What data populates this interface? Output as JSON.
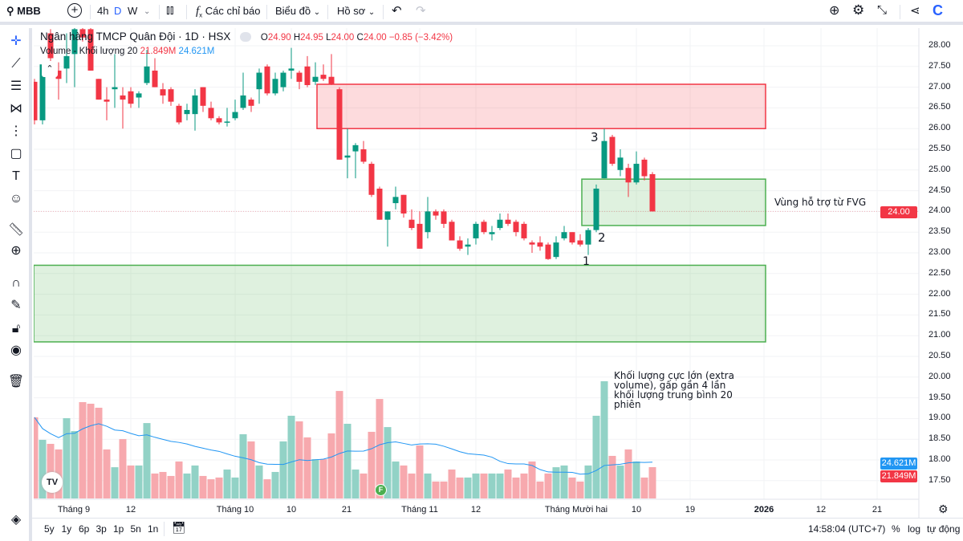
{
  "topbar": {
    "symbol": "MBB",
    "intervals": [
      "4h",
      "D",
      "W"
    ],
    "active_interval": "D",
    "indicators": "Các chỉ báo",
    "chart_menu": "Biểu đồ",
    "profile_menu": "Hồ sơ",
    "logo": "C"
  },
  "legend": {
    "title": "Ngân hàng TMCP Quân Đội · 1D · HSX",
    "o_label": "O",
    "o": "24.90",
    "h_label": "H",
    "h": "24.95",
    "l_label": "L",
    "l": "24.00",
    "c_label": "C",
    "c": "24.00",
    "change": "−0.85 (−3.42%)",
    "volume_label": "Volume - Khối lượng 20",
    "vol": "21.849M",
    "vol_ma": "24.621M"
  },
  "colors": {
    "up": "#089981",
    "down": "#f23645",
    "up_vol": "#92d2c6",
    "down_vol": "#f7a9ae",
    "ma": "#2196f3",
    "accent": "#2962ff",
    "resistance_zone": "#f23645",
    "support_zone": "#4caf50"
  },
  "price_axis": [
    "28.00",
    "27.50",
    "27.00",
    "26.50",
    "26.00",
    "25.50",
    "25.00",
    "24.50",
    "24.00",
    "23.50",
    "23.00",
    "22.50",
    "22.00",
    "21.50",
    "21.00",
    "20.50",
    "20.00",
    "19.50",
    "19.00",
    "18.50",
    "18.00",
    "17.50"
  ],
  "price_tags": {
    "last": "24.00",
    "vol_ma": "24.621M",
    "vol": "21.849M"
  },
  "time_axis": [
    {
      "t": "Tháng 9",
      "x": 92
    },
    {
      "t": "12",
      "x": 163
    },
    {
      "t": "Tháng 10",
      "x": 293
    },
    {
      "t": "10",
      "x": 363
    },
    {
      "t": "21",
      "x": 432
    },
    {
      "t": "Tháng 11",
      "x": 523
    },
    {
      "t": "12",
      "x": 593
    },
    {
      "t": "Tháng Mười hai",
      "x": 718
    },
    {
      "t": "10",
      "x": 793
    },
    {
      "t": "19",
      "x": 860
    },
    {
      "t": "2026",
      "x": 952,
      "bold": true
    },
    {
      "t": "12",
      "x": 1023
    },
    {
      "t": "21",
      "x": 1093
    }
  ],
  "annotations": {
    "p1": "1",
    "p2": "2",
    "p3": "3",
    "fvg": "Vùng hỗ trợ từ FVG",
    "volume_note": "Khối lượng cực lớn (extra volume), gấp gần 4 lần khối lượng trung bình 20 phiên",
    "event": "F"
  },
  "bottombar": {
    "ranges": [
      "5y",
      "1y",
      "6p",
      "3p",
      "1p",
      "5n",
      "1n"
    ],
    "time": "14:58:04 (UTC+7)",
    "percent": "%",
    "log": "log",
    "auto": "tự động"
  },
  "chart_data": {
    "type": "candlestick",
    "price_range": [
      17.25,
      28.4
    ],
    "zones": [
      {
        "kind": "resistance",
        "top": 27.07,
        "bottom": 26.0,
        "from_index": 36
      },
      {
        "kind": "support",
        "top": 24.78,
        "bottom": 23.66,
        "from_index": 69
      },
      {
        "kind": "support",
        "top": 22.7,
        "bottom": 20.85,
        "from_index": 0
      }
    ],
    "last_price_line": 24.0,
    "ohlc": [
      [
        27.13,
        27.2,
        26.1,
        26.2
      ],
      [
        26.2,
        27.6,
        26.1,
        27.55
      ],
      [
        28.3,
        28.4,
        27.6,
        27.7
      ],
      [
        27.4,
        27.6,
        26.7,
        27.2
      ],
      [
        27.45,
        28.3,
        27.1,
        27.75
      ],
      [
        27.8,
        28.5,
        27.0,
        28.4
      ],
      [
        28.4,
        28.5,
        28.1,
        28.2
      ],
      [
        28.4,
        28.5,
        27.4,
        27.4
      ],
      [
        27.2,
        27.2,
        26.7,
        26.7
      ],
      [
        26.7,
        27.0,
        26.2,
        26.65
      ],
      [
        26.95,
        27.8,
        26.5,
        27.0
      ],
      [
        26.8,
        27.0,
        26.0,
        26.7
      ],
      [
        26.9,
        27.0,
        26.5,
        26.6
      ],
      [
        26.75,
        26.9,
        26.5,
        26.85
      ],
      [
        27.1,
        27.9,
        27.05,
        27.5
      ],
      [
        27.4,
        27.7,
        27.0,
        27.0
      ],
      [
        26.95,
        27.1,
        26.6,
        26.8
      ],
      [
        26.95,
        27.0,
        26.55,
        26.65
      ],
      [
        26.55,
        26.6,
        26.1,
        26.15
      ],
      [
        26.35,
        26.6,
        26.2,
        26.45
      ],
      [
        26.35,
        26.95,
        25.95,
        26.8
      ],
      [
        27.0,
        27.0,
        26.4,
        26.55
      ],
      [
        26.5,
        26.65,
        26.2,
        26.25
      ],
      [
        26.25,
        26.3,
        26.1,
        26.15
      ],
      [
        26.15,
        26.5,
        26.05,
        26.17
      ],
      [
        26.25,
        26.7,
        26.2,
        26.4
      ],
      [
        26.5,
        27.35,
        26.45,
        26.8
      ],
      [
        26.7,
        26.75,
        26.4,
        26.55
      ],
      [
        26.95,
        27.45,
        26.6,
        27.35
      ],
      [
        27.5,
        27.55,
        26.8,
        26.85
      ],
      [
        26.85,
        27.35,
        26.8,
        27.2
      ],
      [
        27.0,
        27.4,
        26.9,
        27.35
      ],
      [
        27.4,
        27.95,
        27.2,
        27.45
      ],
      [
        27.35,
        27.4,
        26.95,
        27.13
      ],
      [
        27.5,
        27.75,
        27.0,
        27.05
      ],
      [
        27.13,
        27.6,
        27.05,
        27.25
      ],
      [
        27.3,
        27.55,
        27.15,
        27.2
      ],
      [
        27.25,
        27.8,
        27.05,
        27.08
      ],
      [
        26.95,
        27.0,
        25.25,
        25.25
      ],
      [
        25.3,
        26.0,
        24.8,
        25.35
      ],
      [
        25.45,
        25.65,
        24.8,
        25.6
      ],
      [
        25.5,
        25.7,
        25.15,
        25.2
      ],
      [
        25.15,
        25.2,
        24.35,
        24.4
      ],
      [
        24.55,
        24.6,
        23.8,
        23.8
      ],
      [
        23.8,
        24.0,
        23.15,
        24.0
      ],
      [
        24.2,
        24.6,
        24.05,
        24.35
      ],
      [
        24.4,
        24.4,
        23.85,
        23.95
      ],
      [
        23.8,
        24.05,
        23.55,
        23.6
      ],
      [
        23.7,
        24.0,
        23.1,
        23.1
      ],
      [
        23.5,
        24.35,
        23.35,
        24.0
      ],
      [
        24.0,
        24.05,
        23.8,
        23.9
      ],
      [
        24.0,
        24.05,
        23.6,
        23.7
      ],
      [
        23.75,
        23.8,
        23.3,
        23.3
      ],
      [
        23.3,
        23.4,
        23.05,
        23.1
      ],
      [
        23.15,
        23.35,
        22.95,
        23.2
      ],
      [
        23.35,
        23.75,
        23.2,
        23.7
      ],
      [
        23.75,
        23.8,
        23.45,
        23.5
      ],
      [
        23.45,
        23.65,
        23.3,
        23.5
      ],
      [
        23.6,
        23.95,
        23.55,
        23.8
      ],
      [
        23.8,
        23.95,
        23.65,
        23.7
      ],
      [
        23.75,
        23.8,
        23.4,
        23.5
      ],
      [
        23.7,
        23.75,
        23.3,
        23.35
      ],
      [
        23.25,
        23.3,
        23.0,
        23.2
      ],
      [
        23.25,
        23.4,
        23.05,
        23.15
      ],
      [
        23.2,
        23.25,
        22.83,
        22.85
      ],
      [
        22.9,
        23.4,
        22.85,
        23.25
      ],
      [
        23.35,
        23.65,
        23.3,
        23.5
      ],
      [
        23.5,
        23.5,
        23.2,
        23.25
      ],
      [
        23.3,
        23.45,
        23.15,
        23.2
      ],
      [
        23.2,
        23.6,
        22.95,
        23.55
      ],
      [
        23.55,
        24.65,
        23.5,
        24.55
      ],
      [
        24.8,
        26.0,
        24.8,
        25.7
      ],
      [
        25.8,
        25.85,
        25.1,
        25.15
      ],
      [
        25.0,
        25.5,
        24.85,
        25.3
      ],
      [
        25.05,
        25.15,
        24.35,
        24.7
      ],
      [
        24.7,
        25.45,
        24.65,
        25.15
      ],
      [
        25.25,
        25.3,
        24.75,
        24.85
      ],
      [
        24.9,
        24.95,
        24.0,
        24.0
      ]
    ],
    "volume_m": [
      56.6,
      40.9,
      38.1,
      34.2,
      56,
      47,
      67.2,
      66.1,
      63.3,
      34.2,
      21.8,
      41.4,
      23,
      23,
      52.6,
      17.4,
      18.5,
      15.7,
      25.8,
      17.4,
      23,
      15.7,
      13.4,
      14.6,
      20.2,
      14.6,
      44.8,
      39.8,
      23,
      13.4,
      18.5,
      39.8,
      57.7,
      53.8,
      42.6,
      27.4,
      27.4,
      45.4,
      75,
      52.1,
      20.2,
      17.4,
      46.5,
      69.4,
      49.8,
      25.8,
      23,
      17.4,
      37,
      17.4,
      11.8,
      11.8,
      20.2,
      14.6,
      14.6,
      17.4,
      17.4,
      17.4,
      17.4,
      20.2,
      14.6,
      17.4,
      25.8,
      11.8,
      17.4,
      21.8,
      23,
      14.6,
      11.8,
      23,
      57.7,
      81.8,
      29.7,
      23,
      34.2,
      25.8,
      14.6,
      21.849
    ],
    "volume_ma_period": 20
  }
}
